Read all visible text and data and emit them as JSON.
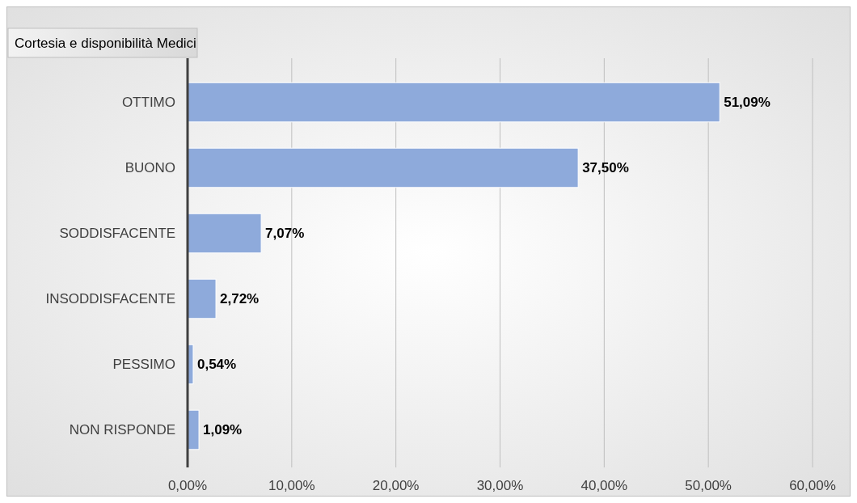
{
  "chart_data": {
    "type": "bar",
    "orientation": "horizontal",
    "title": "Cortesia e disponibilità Medici",
    "categories": [
      "OTTIMO",
      "BUONO",
      "SODDISFACENTE",
      "INSODDISFACENTE",
      "PESSIMO",
      "NON RISPONDE"
    ],
    "values": [
      51.09,
      37.5,
      7.07,
      2.72,
      0.54,
      1.09
    ],
    "value_labels": [
      "51,09%",
      "37,50%",
      "7,07%",
      "2,72%",
      "0,54%",
      "1,09%"
    ],
    "color": "#8eaadb",
    "xlim": [
      0,
      60
    ],
    "xticks": [
      {
        "value": 0,
        "label": "0,00%"
      },
      {
        "value": 10,
        "label": "10,00%"
      },
      {
        "value": 20,
        "label": "20,00%"
      },
      {
        "value": 30,
        "label": "30,00%"
      },
      {
        "value": 40,
        "label": "40,00%"
      },
      {
        "value": 50,
        "label": "50,00%"
      },
      {
        "value": 60,
        "label": "60,00%"
      }
    ],
    "grid": "x"
  }
}
